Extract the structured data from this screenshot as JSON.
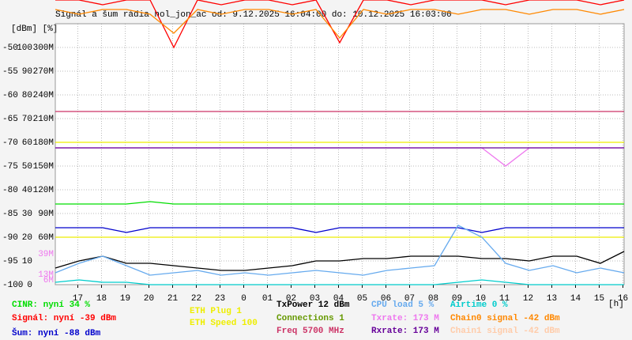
{
  "chart_data": {
    "type": "line",
    "title": "Signál a šum rádia hol_jon_ac od: 9.12.2025 16:04:00 do: 10.12.2025 16:03:00",
    "axis_header": "[dBm] [%]",
    "xlabel": "[h]",
    "x": [
      16.05,
      17.05,
      18.05,
      19.05,
      20.05,
      21.05,
      22.05,
      23.05,
      24.05,
      25.05,
      26.05,
      27.05,
      28.05,
      29.05,
      30.05,
      31.05,
      32.05,
      33.05,
      34.05,
      35.05,
      36.05,
      37.05,
      38.05,
      39.05,
      40.05
    ],
    "xlim": [
      16.05,
      40.05
    ],
    "xticks": [
      17,
      18,
      19,
      20,
      21,
      22,
      23,
      {
        "value": 24,
        "label": "0"
      },
      {
        "value": 25,
        "label": "01"
      },
      {
        "value": 26,
        "label": "02"
      },
      {
        "value": 27,
        "label": "03"
      },
      {
        "value": 28,
        "label": "04"
      },
      {
        "value": 29,
        "label": "05"
      },
      {
        "value": 30,
        "label": "06"
      },
      {
        "value": 31,
        "label": "07"
      },
      {
        "value": 32,
        "label": "08"
      },
      {
        "value": 33,
        "label": "09"
      },
      {
        "value": 34,
        "label": "10"
      },
      {
        "value": 35,
        "label": "11"
      },
      {
        "value": 36,
        "label": "12"
      },
      {
        "value": 37,
        "label": "13"
      },
      {
        "value": 38,
        "label": "14"
      },
      {
        "value": 39,
        "label": "15"
      },
      {
        "value": 40,
        "label": "16"
      }
    ],
    "ylim": [
      -100,
      -45
    ],
    "yticks": [
      -100,
      -95,
      -90,
      -85,
      -80,
      -75,
      -70,
      -65,
      -60,
      -55,
      -50,
      -45
    ],
    "y2lim": [
      0,
      110
    ],
    "y2ticks": [
      0,
      10,
      20,
      30,
      40,
      50,
      60,
      70,
      80,
      90,
      100
    ],
    "y3lim": [
      0,
      330
    ],
    "y3ticks": [
      {
        "value": 60,
        "label": "60M"
      },
      {
        "value": 90,
        "label": "90M"
      },
      {
        "value": 120,
        "label": "120M"
      },
      {
        "value": 150,
        "label": "150M"
      },
      {
        "value": 180,
        "label": "180M"
      },
      {
        "value": 210,
        "label": "210M"
      },
      {
        "value": 240,
        "label": "240M"
      },
      {
        "value": 270,
        "label": "270M"
      },
      {
        "value": 300,
        "label": "300M"
      }
    ],
    "y3_markers": [
      {
        "value": 39,
        "label": "39M"
      },
      {
        "value": 13,
        "label": "13M"
      },
      {
        "value": 6,
        "label": "6M"
      }
    ],
    "grid": true,
    "series": [
      {
        "name": "CINR: nyní 34 %",
        "color": "#00dd00",
        "axis": "y2",
        "values": [
          34,
          34,
          34,
          34,
          35,
          34,
          34,
          34,
          34,
          34,
          34,
          34,
          34,
          34,
          34,
          34,
          34,
          34,
          34,
          34,
          34,
          34,
          34,
          34,
          34
        ]
      },
      {
        "name": "Signál: nyní -39 dBm",
        "color": "#ff0000",
        "values": [
          -40,
          -40,
          -41,
          -40,
          -40,
          -50,
          -40,
          -41,
          -40,
          -40,
          -41,
          -40,
          -49,
          -40,
          -40,
          -41,
          -40,
          -40,
          -40,
          -41,
          -40,
          -40,
          -40,
          -41,
          -40
        ]
      },
      {
        "name": "Šum: nyní -88 dBm",
        "color": "#0000cc",
        "values": [
          -88,
          -88,
          -88,
          -89,
          -88,
          -88,
          -88,
          -88,
          -88,
          -88,
          -88,
          -89,
          -88,
          -88,
          -88,
          -88,
          -88,
          -88,
          -89,
          -88,
          -88,
          -88,
          -88,
          -88,
          -88
        ]
      },
      {
        "name": "ETH Plug 1",
        "color": "#eeee00",
        "axis": "y2",
        "values": [
          20,
          20,
          20,
          20,
          20,
          20,
          20,
          20,
          20,
          20,
          20,
          20,
          20,
          20,
          20,
          20,
          20,
          20,
          20,
          20,
          20,
          20,
          20,
          20,
          20
        ]
      },
      {
        "name": "ETH Speed 100",
        "color": "#eeee00",
        "axis": "y2",
        "values": [
          60,
          60,
          60,
          60,
          60,
          60,
          60,
          60,
          60,
          60,
          60,
          60,
          60,
          60,
          60,
          60,
          60,
          60,
          60,
          60,
          60,
          60,
          60,
          60,
          60
        ]
      },
      {
        "name": "TxPower 12 dBm",
        "color": "#000000",
        "axis": "y2",
        "values": [
          7,
          10,
          12,
          9,
          9,
          8,
          7,
          6,
          6,
          7,
          8,
          10,
          10,
          11,
          11,
          12,
          12,
          12,
          11,
          11,
          10,
          12,
          12,
          9,
          14
        ]
      },
      {
        "name": "Freq 5700 MHz",
        "color": "#cc3366",
        "axis": "y3",
        "values": [
          219,
          219,
          219,
          219,
          219,
          219,
          219,
          219,
          219,
          219,
          219,
          219,
          219,
          219,
          219,
          219,
          219,
          219,
          219,
          219,
          219,
          219,
          219,
          219,
          219
        ]
      },
      {
        "name": "CPU load 5 %",
        "color": "#66aaee",
        "axis": "y2",
        "values": [
          5,
          9,
          12,
          8,
          4,
          5,
          6,
          4,
          5,
          4,
          5,
          6,
          5,
          4,
          6,
          7,
          8,
          25,
          20,
          9,
          6,
          8,
          5,
          7,
          5
        ]
      },
      {
        "name": "Txrate: 173 M",
        "color": "#ee77ee",
        "axis": "y3",
        "values": [
          173,
          173,
          173,
          173,
          173,
          173,
          173,
          173,
          173,
          173,
          173,
          173,
          173,
          173,
          173,
          173,
          173,
          173,
          173,
          150,
          173,
          173,
          173,
          173,
          173
        ]
      },
      {
        "name": "Rxrate: 173 M",
        "color": "#660099",
        "axis": "y3",
        "values": [
          173,
          173,
          173,
          173,
          173,
          173,
          173,
          173,
          173,
          173,
          173,
          173,
          173,
          173,
          173,
          173,
          173,
          173,
          173,
          173,
          173,
          173,
          173,
          173,
          173
        ]
      },
      {
        "name": "Airtime 0 %",
        "color": "#00cccc",
        "axis": "y2",
        "values": [
          1,
          2,
          1,
          1,
          0,
          0,
          0,
          0,
          0,
          0,
          0,
          0,
          0,
          0,
          0,
          0,
          0,
          1,
          2,
          1,
          0,
          0,
          0,
          0,
          0
        ]
      },
      {
        "name": "Chain0 signal -42 dBm",
        "color": "#ff8800",
        "values": [
          -42,
          -43,
          -42,
          -42,
          -43,
          -47,
          -42,
          -43,
          -42,
          -42,
          -43,
          -42,
          -48,
          -42,
          -43,
          -42,
          -42,
          -43,
          -42,
          -42,
          -43,
          -42,
          -42,
          -43,
          -42
        ]
      }
    ],
    "legend_only": [
      {
        "name": "Connections 1",
        "color": "#669900"
      },
      {
        "name": "Chain1 signal -42 dBm",
        "color": "#ffccaa"
      }
    ]
  }
}
